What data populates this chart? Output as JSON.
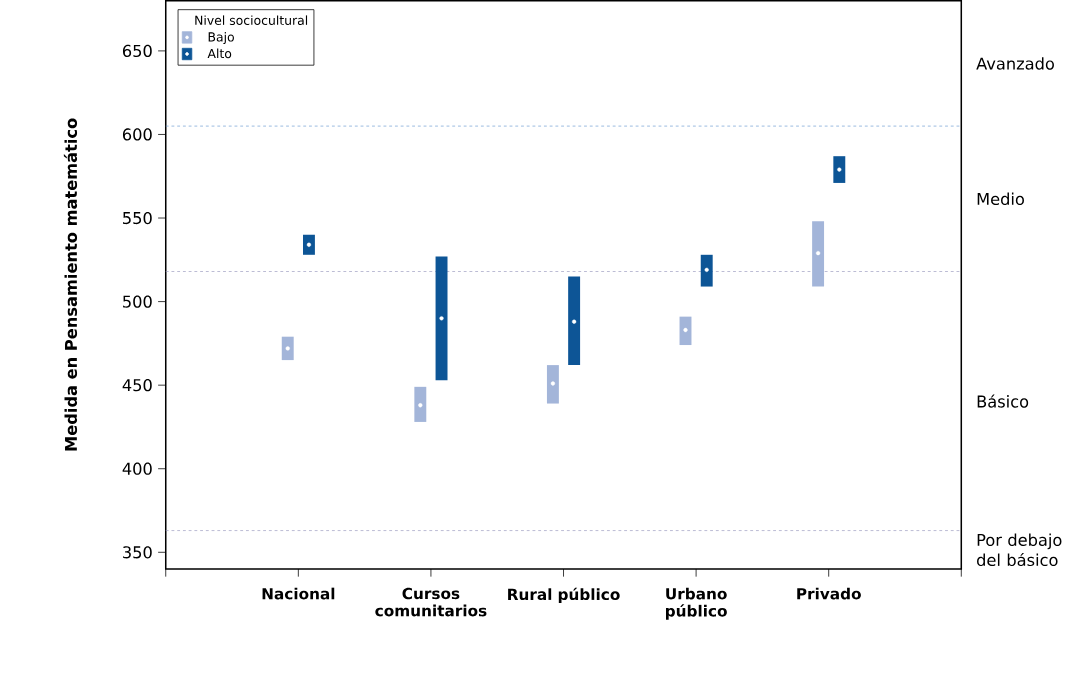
{
  "chart_data": {
    "type": "bar",
    "ylabel": "Medida en Pensamiento matemático",
    "legend_title": "Nivel sociocultural",
    "categories": [
      "Nacional",
      "Cursos comunitarios",
      "Rural público",
      "Urbano público",
      "Privado"
    ],
    "series": [
      {
        "name": "Bajo",
        "color": "#a3b5d9",
        "base": [
          465,
          428,
          439,
          474,
          509
        ],
        "values": [
          14,
          21,
          23,
          17,
          39
        ]
      },
      {
        "name": "Alto",
        "color": "#0d5596",
        "base": [
          528,
          453,
          462,
          509,
          571
        ],
        "values": [
          12,
          74,
          53,
          19,
          16
        ]
      },
      {
        "type": "scatter",
        "color": "#ffffff",
        "x": [
          "Nacional",
          "Cursos comunitarios",
          "Rural público",
          "Urbano público",
          "Privado"
        ],
        "values": [
          472,
          438,
          451,
          483,
          529
        ]
      },
      {
        "type": "scatter",
        "color": "#ffffff",
        "x": [
          "Nacional",
          "Cursos comunitarios",
          "Rural público",
          "Urbano público",
          "Privado"
        ],
        "values": [
          534,
          490,
          488,
          519,
          579
        ]
      }
    ],
    "marker": "circle",
    "ylim": [
      340,
      680
    ],
    "yticks": [
      350,
      400,
      450,
      500,
      550,
      600,
      650
    ],
    "ref_lines": [
      {
        "axis": "y",
        "value": 363,
        "color": "#9a9abf",
        "line_style": "dashed"
      },
      {
        "axis": "y",
        "value": 518,
        "color": "#9a9abf",
        "line_style": "dashed"
      },
      {
        "axis": "y",
        "value": 605,
        "color": "#6a9bd1",
        "line_style": "dashed"
      }
    ],
    "annotations": [
      "Avanzado",
      "Medio",
      "Básico",
      "Por debajo del básico"
    ],
    "legend": "top left",
    "grid": false
  }
}
